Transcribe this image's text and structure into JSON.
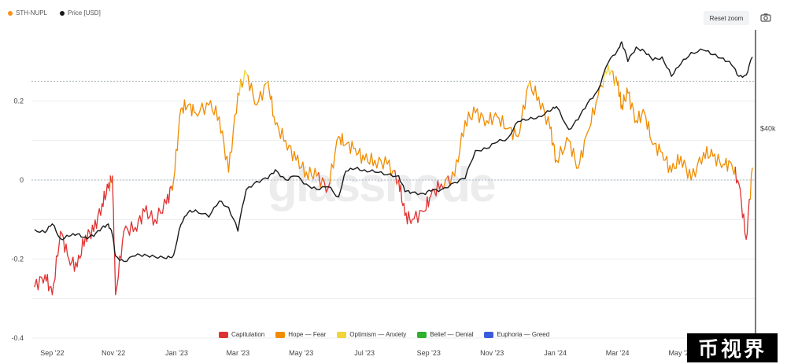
{
  "legend": {
    "sth_nupl_label": "STH-NUPL",
    "price_label": "Price [USD]"
  },
  "controls": {
    "reset_zoom_label": "Reset zoom"
  },
  "watermark": "glassnode",
  "brand_badge": "币视界",
  "colors": {
    "sth_nupl": "#f7931a",
    "price": "#1a1a1a",
    "capitulation": "#e03131",
    "hope_fear": "#f08c00",
    "optimism_anxiety": "#f0d43a",
    "belief_denial": "#2fb02f",
    "euphoria_greed": "#3b5bdb",
    "grid": "#e9ecef"
  },
  "chart_data": {
    "type": "line",
    "y_left_ticks": [
      "0.2",
      "0",
      "-0.2",
      "-0.4"
    ],
    "y_left_values": [
      0.2,
      0,
      -0.2,
      -0.4
    ],
    "ylim_left": [
      -0.4,
      0.38
    ],
    "y_right_ticks": [
      "$40k"
    ],
    "x_ticks": [
      "Sep '22",
      "Nov '22",
      "Jan '23",
      "Mar '23",
      "May '23",
      "Jul '23",
      "Sep '23",
      "Nov '23",
      "Jan '24",
      "Mar '24",
      "May '24"
    ],
    "regions": [
      {
        "name": "Capitulation",
        "color": "#e03131"
      },
      {
        "name": "Hope — Fear",
        "color": "#f08c00"
      },
      {
        "name": "Optimism — Anxiety",
        "color": "#f0d43a"
      },
      {
        "name": "Belief — Denial",
        "color": "#2fb02f"
      },
      {
        "name": "Euphoria — Greed",
        "color": "#3b5bdb"
      }
    ],
    "series": [
      {
        "name": "STH-NUPL",
        "x": [
          "2022-08-26",
          "2022-09-05",
          "2022-09-12",
          "2022-09-20",
          "2022-09-28",
          "2022-10-06",
          "2022-10-14",
          "2022-10-22",
          "2022-10-30",
          "2022-11-05",
          "2022-11-09",
          "2022-11-12",
          "2022-11-20",
          "2022-12-01",
          "2022-12-10",
          "2022-12-20",
          "2022-12-31",
          "2023-01-07",
          "2023-01-14",
          "2023-01-21",
          "2023-01-28",
          "2023-02-10",
          "2023-02-20",
          "2023-03-01",
          "2023-03-10",
          "2023-03-18",
          "2023-03-28",
          "2023-04-08",
          "2023-04-15",
          "2023-04-25",
          "2023-05-05",
          "2023-05-15",
          "2023-05-25",
          "2023-06-05",
          "2023-06-15",
          "2023-06-22",
          "2023-07-01",
          "2023-07-10",
          "2023-07-20",
          "2023-08-01",
          "2023-08-12",
          "2023-08-18",
          "2023-08-25",
          "2023-09-05",
          "2023-09-12",
          "2023-09-22",
          "2023-10-05",
          "2023-10-15",
          "2023-10-25",
          "2023-11-05",
          "2023-11-15",
          "2023-11-25",
          "2023-12-05",
          "2023-12-15",
          "2023-12-25",
          "2024-01-05",
          "2024-01-11",
          "2024-01-23",
          "2024-02-01",
          "2024-02-10",
          "2024-02-20",
          "2024-03-01",
          "2024-03-10",
          "2024-03-14",
          "2024-03-20",
          "2024-03-28",
          "2024-04-05",
          "2024-04-13",
          "2024-04-22",
          "2024-05-01",
          "2024-05-10",
          "2024-05-20",
          "2024-06-01",
          "2024-06-10",
          "2024-06-20",
          "2024-06-28",
          "2024-07-05",
          "2024-07-12",
          "2024-07-18"
        ],
        "values": [
          -0.27,
          -0.24,
          -0.29,
          -0.13,
          -0.2,
          -0.22,
          -0.14,
          -0.13,
          -0.06,
          -0.02,
          0.01,
          -0.29,
          -0.13,
          -0.12,
          -0.08,
          -0.1,
          -0.06,
          0.0,
          0.18,
          0.19,
          0.17,
          0.19,
          0.16,
          0.02,
          0.22,
          0.27,
          0.19,
          0.25,
          0.14,
          0.1,
          0.05,
          0.02,
          0.01,
          -0.02,
          0.11,
          0.09,
          0.08,
          0.05,
          0.05,
          0.04,
          0.0,
          -0.09,
          -0.1,
          -0.08,
          -0.04,
          -0.01,
          0.01,
          0.15,
          0.17,
          0.15,
          0.16,
          0.13,
          0.11,
          0.24,
          0.21,
          0.13,
          0.05,
          0.1,
          0.03,
          0.12,
          0.21,
          0.29,
          0.24,
          0.19,
          0.22,
          0.15,
          0.17,
          0.09,
          0.07,
          0.02,
          0.06,
          0.0,
          0.07,
          0.06,
          0.04,
          0.04,
          -0.01,
          -0.15,
          0.03
        ]
      },
      {
        "name": "Price [USD]",
        "x": [
          "2022-08-26",
          "2022-09-05",
          "2022-09-12",
          "2022-09-20",
          "2022-09-28",
          "2022-10-06",
          "2022-10-14",
          "2022-10-22",
          "2022-10-30",
          "2022-11-05",
          "2022-11-09",
          "2022-11-12",
          "2022-11-20",
          "2022-12-01",
          "2022-12-10",
          "2022-12-20",
          "2022-12-31",
          "2023-01-07",
          "2023-01-14",
          "2023-01-21",
          "2023-01-28",
          "2023-02-10",
          "2023-02-20",
          "2023-03-01",
          "2023-03-10",
          "2023-03-18",
          "2023-03-28",
          "2023-04-08",
          "2023-04-15",
          "2023-04-25",
          "2023-05-05",
          "2023-05-15",
          "2023-05-25",
          "2023-06-05",
          "2023-06-15",
          "2023-06-22",
          "2023-07-01",
          "2023-07-10",
          "2023-07-20",
          "2023-08-01",
          "2023-08-12",
          "2023-08-18",
          "2023-08-25",
          "2023-09-05",
          "2023-09-12",
          "2023-09-22",
          "2023-10-05",
          "2023-10-15",
          "2023-10-25",
          "2023-11-05",
          "2023-11-15",
          "2023-11-25",
          "2023-12-05",
          "2023-12-15",
          "2023-12-25",
          "2024-01-05",
          "2024-01-11",
          "2024-01-23",
          "2024-02-01",
          "2024-02-10",
          "2024-02-20",
          "2024-03-01",
          "2024-03-10",
          "2024-03-14",
          "2024-03-20",
          "2024-03-28",
          "2024-04-05",
          "2024-04-13",
          "2024-04-22",
          "2024-05-01",
          "2024-05-10",
          "2024-05-20",
          "2024-06-01",
          "2024-06-10",
          "2024-06-20",
          "2024-06-28",
          "2024-07-05",
          "2024-07-12",
          "2024-07-18"
        ],
        "values": [
          20200,
          19800,
          21000,
          19000,
          19300,
          19600,
          19200,
          19300,
          20500,
          21000,
          19500,
          16900,
          16300,
          16900,
          17100,
          16800,
          16600,
          17000,
          20900,
          22700,
          23100,
          22000,
          24500,
          23500,
          20000,
          26500,
          28000,
          28500,
          30300,
          28300,
          29000,
          27500,
          26500,
          27000,
          25200,
          30000,
          30500,
          30300,
          29800,
          29300,
          29100,
          26100,
          26000,
          25800,
          26200,
          26500,
          27800,
          28500,
          34500,
          35000,
          36500,
          37500,
          42000,
          42500,
          43500,
          45000,
          46500,
          39800,
          42500,
          47500,
          51800,
          62500,
          68000,
          72000,
          63000,
          69500,
          67500,
          63500,
          65000,
          57000,
          62000,
          67000,
          68000,
          66000,
          64500,
          61500,
          57000,
          57500,
          65000
        ]
      }
    ]
  }
}
